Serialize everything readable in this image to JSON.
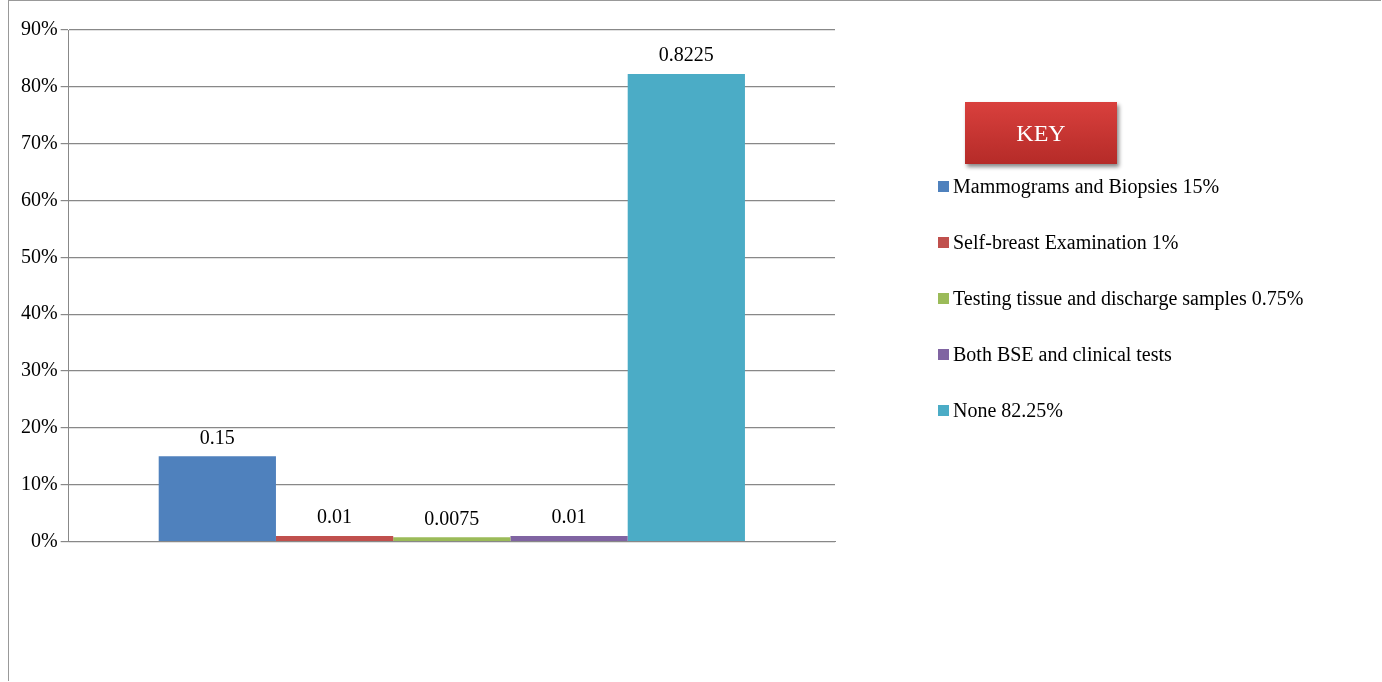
{
  "chart_data": {
    "type": "bar",
    "legend_title": "KEY",
    "categories": [
      null
    ],
    "series": [
      {
        "name": "Mammograms and Biopsies 15%",
        "color": "#4f81bd",
        "values": [
          0.15
        ]
      },
      {
        "name": "Self-breast Examination 1%",
        "color": "#c0504d",
        "values": [
          0.01
        ]
      },
      {
        "name": "Testing tissue and discharge samples 0.75%",
        "color": "#9bbb59",
        "values": [
          0.0075
        ]
      },
      {
        "name": "Both  BSE and clinical tests",
        "color": "#8064a2",
        "values": [
          0.01
        ]
      },
      {
        "name": "None 82.25%",
        "color": "#4bacc6",
        "values": [
          0.8225
        ]
      }
    ],
    "ylim": [
      0,
      0.9
    ],
    "yticks": [
      {
        "value": 0,
        "label": "0%"
      },
      {
        "value": 0.1,
        "label": "10%"
      },
      {
        "value": 0.2,
        "label": "20%"
      },
      {
        "value": 0.3,
        "label": "30%"
      },
      {
        "value": 0.4,
        "label": "40%"
      },
      {
        "value": 0.5,
        "label": "50%"
      },
      {
        "value": 0.6,
        "label": "60%"
      },
      {
        "value": 0.7,
        "label": "70%"
      },
      {
        "value": 0.8,
        "label": "80%"
      },
      {
        "value": 0.9,
        "label": "90%"
      }
    ],
    "grid": "y",
    "legend": "right",
    "data_labels": true
  }
}
